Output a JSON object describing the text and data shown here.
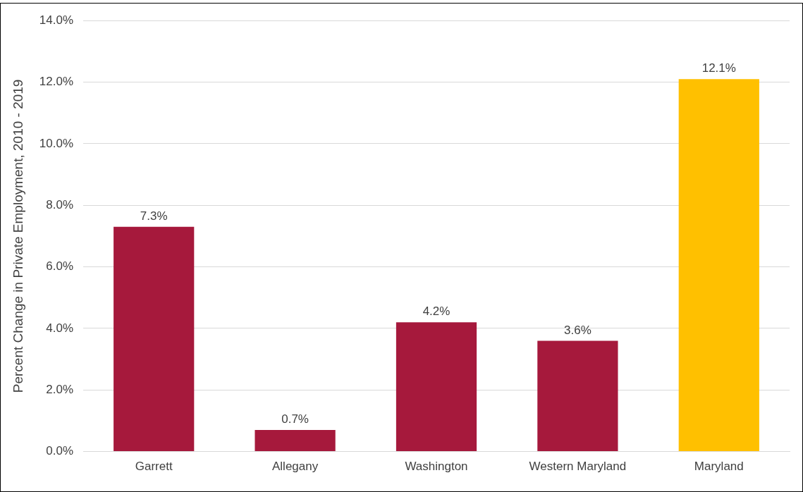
{
  "chart_data": {
    "type": "bar",
    "ylabel": "Percent Change in Private Employment, 2010 - 2019",
    "categories": [
      "Garrett",
      "Allegany",
      "Washington",
      "Western Maryland",
      "Maryland"
    ],
    "values": [
      7.3,
      0.7,
      4.2,
      3.6,
      12.1
    ],
    "colors": [
      "#a6193c",
      "#a6193c",
      "#a6193c",
      "#a6193c",
      "#ffc000"
    ],
    "value_labels": [
      "7.3%",
      "0.7%",
      "4.2%",
      "3.6%",
      "12.1%"
    ],
    "ylim": [
      0,
      14
    ],
    "yticks": [
      {
        "value": 0,
        "label": "0.0%"
      },
      {
        "value": 2,
        "label": "2.0%"
      },
      {
        "value": 4,
        "label": "4.0%"
      },
      {
        "value": 6,
        "label": "6.0%"
      },
      {
        "value": 8,
        "label": "8.0%"
      },
      {
        "value": 10,
        "label": "10.0%"
      },
      {
        "value": 12,
        "label": "12.0%"
      },
      {
        "value": 14,
        "label": "14.0%"
      }
    ],
    "grid": "y",
    "legend": false
  }
}
